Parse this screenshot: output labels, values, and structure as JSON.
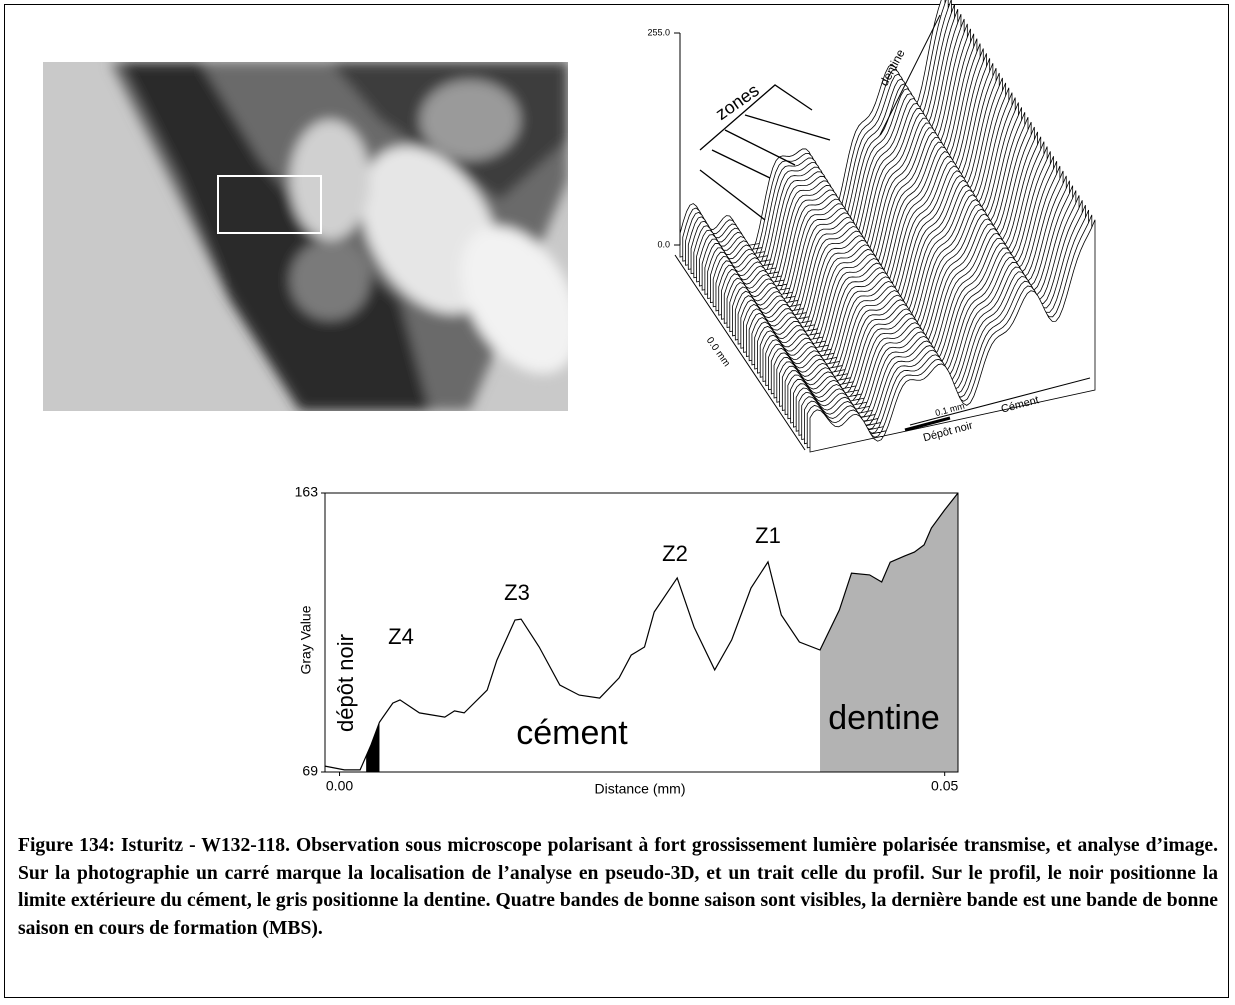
{
  "pseudo3d": {
    "z_max_label": "255.0",
    "z_min_label": "0.0",
    "zones_label": "zones",
    "dentine_label": "dentine",
    "y_label": "0.0 mm",
    "x_label": "0.1 mm",
    "depot_label": "Dépôt noir",
    "cement_label": "Cément"
  },
  "chart_data": {
    "type": "line",
    "xlabel": "Distance (mm)",
    "ylabel": "Gray Value",
    "color": "#000000",
    "x": [
      -0.0012,
      0.0004,
      0.0017,
      0.0026,
      0.0033,
      0.0044,
      0.005,
      0.0066,
      0.0087,
      0.0095,
      0.0103,
      0.0122,
      0.013,
      0.0145,
      0.015,
      0.0165,
      0.0182,
      0.0198,
      0.0215,
      0.0231,
      0.0241,
      0.0252,
      0.026,
      0.0279,
      0.0293,
      0.031,
      0.0324,
      0.034,
      0.0354,
      0.0365,
      0.038,
      0.0397,
      0.0413,
      0.0423,
      0.0438,
      0.0448,
      0.0455,
      0.0467,
      0.0475,
      0.0483,
      0.0489,
      0.05,
      0.0511
    ],
    "values": [
      71.0,
      69.7,
      69.7,
      78.1,
      85.8,
      92.2,
      93.3,
      88.9,
      87.5,
      89.6,
      88.9,
      96.6,
      106.7,
      120.2,
      120.5,
      111.1,
      98.3,
      94.9,
      93.9,
      100.7,
      108.4,
      111.1,
      122.9,
      134.4,
      117.8,
      103.4,
      113.5,
      131.0,
      139.8,
      121.9,
      112.8,
      110.1,
      123.6,
      136.0,
      135.4,
      133.0,
      139.7,
      141.8,
      143.1,
      145.5,
      151.2,
      157.3,
      163.0
    ],
    "xlim": [
      -0.0012,
      0.0511
    ],
    "ylim": [
      69,
      163
    ],
    "xticks": [
      {
        "value": 0,
        "label": "0.00"
      },
      {
        "value": 0.05,
        "label": "0.05"
      }
    ],
    "yticks": [
      69,
      163
    ],
    "regions": [
      {
        "name": "dépôt noir",
        "from": 0.0022,
        "to": 0.0033,
        "color": "#000000"
      },
      {
        "name": "dentine",
        "from": 0.0397,
        "to": 0.0511,
        "color": "#b3b3b3"
      }
    ],
    "annotations": [
      "Z4",
      "Z3",
      "Z2",
      "Z1",
      "cément"
    ]
  },
  "caption": "Figure 134: Isturitz - W132-118. Observation sous microscope polarisant à fort grossissement lumière polarisée transmise, et analyse d’image. Sur la photographie un carré marque la localisation de l’analyse en pseudo-3D, et un trait celle du profil. Sur le profil, le noir positionne la limite extérieure du cément, le gris positionne la dentine. Quatre bandes de bonne saison sont visibles, la dernière bande est une bande de bonne saison en cours de formation (MBS)."
}
